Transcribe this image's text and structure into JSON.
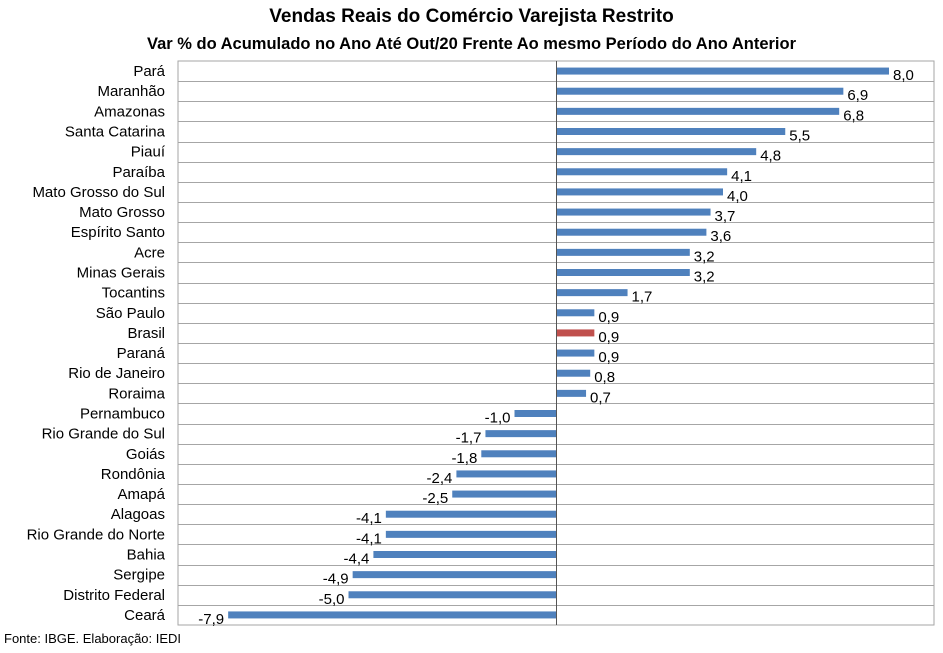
{
  "chart_data": {
    "type": "bar",
    "orientation": "horizontal",
    "title": "Vendas Reais do Comércio Varejista Restrito",
    "subtitle": "Var % do Acumulado  no Ano Até Out/20 Frente Ao mesmo  Período do Ano Anterior",
    "categories": [
      "Pará",
      "Maranhão",
      "Amazonas",
      "Santa Catarina",
      "Piauí",
      "Paraíba",
      "Mato Grosso do Sul",
      "Mato Grosso",
      "Espírito Santo",
      "Acre",
      "Minas Gerais",
      "Tocantins",
      "São Paulo",
      "Brasil",
      "Paraná",
      "Rio de Janeiro",
      "Roraima",
      "Pernambuco",
      "Rio Grande do Sul",
      "Goiás",
      "Rondônia",
      "Amapá",
      "Alagoas",
      "Rio Grande do Norte",
      "Bahia",
      "Sergipe",
      "Distrito Federal",
      "Ceará"
    ],
    "values": [
      8.0,
      6.9,
      6.8,
      5.5,
      4.8,
      4.1,
      4.0,
      3.7,
      3.6,
      3.2,
      3.2,
      1.7,
      0.9,
      0.9,
      0.9,
      0.8,
      0.7,
      -1.0,
      -1.7,
      -1.8,
      -2.4,
      -2.5,
      -4.1,
      -4.1,
      -4.4,
      -4.9,
      -5.0,
      -7.9
    ],
    "data_labels": [
      "8,0",
      "6,9",
      "6,8",
      "5,5",
      "4,8",
      "4,1",
      "4,0",
      "3,7",
      "3,6",
      "3,2",
      "3,2",
      "1,7",
      "0,9",
      "0,9",
      "0,9",
      "0,8",
      "0,7",
      "-1,0",
      "-1,7",
      "-1,8",
      "-2,4",
      "-2,5",
      "-4,1",
      "-4,1",
      "-4,4",
      "-4,9",
      "-5,0",
      "-7,9"
    ],
    "xlim": [
      -8.0,
      8.0
    ],
    "highlight_category": "Brasil",
    "colors": {
      "bar": "#4f81bd",
      "highlight": "#c0504d",
      "grid": "#a6a6a6",
      "axis": "#555555"
    },
    "grid": "horizontal"
  },
  "source": "Fonte: IBGE. Elaboração: IEDI"
}
